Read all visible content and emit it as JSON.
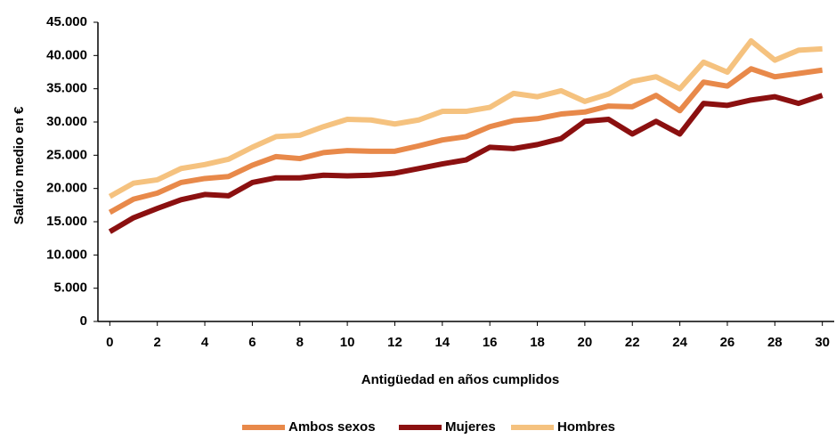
{
  "chart_data": {
    "type": "line",
    "y_label": "Salario medio en €",
    "x_label": "Antigüedad en años cumplidos",
    "x": [
      0,
      1,
      2,
      3,
      4,
      5,
      6,
      7,
      8,
      9,
      10,
      11,
      12,
      13,
      14,
      15,
      16,
      17,
      18,
      19,
      20,
      21,
      22,
      23,
      24,
      25,
      26,
      27,
      28,
      29,
      30
    ],
    "series": [
      {
        "name": "Ambos sexos",
        "color": "#e8894a",
        "values": [
          16400,
          18400,
          19300,
          20900,
          21500,
          21800,
          23500,
          24800,
          24500,
          25400,
          25700,
          25600,
          25600,
          26400,
          27300,
          27800,
          29300,
          30200,
          30500,
          31200,
          31500,
          32400,
          32300,
          34000,
          31700,
          36000,
          35400,
          38000,
          36800,
          37300,
          37800
        ]
      },
      {
        "name": "Mujeres",
        "color": "#8b1010",
        "values": [
          13500,
          15600,
          17000,
          18300,
          19100,
          18900,
          20900,
          21600,
          21600,
          22000,
          21900,
          22000,
          22300,
          23000,
          23700,
          24300,
          26200,
          26000,
          26600,
          27500,
          30100,
          30400,
          28200,
          30100,
          28200,
          32800,
          32500,
          33300,
          33800,
          32800,
          34000
        ]
      },
      {
        "name": "Hombres",
        "color": "#f5c27f",
        "values": [
          18800,
          20800,
          21300,
          23000,
          23600,
          24400,
          26200,
          27800,
          28000,
          29300,
          30400,
          30300,
          29700,
          30300,
          31600,
          31600,
          32200,
          34300,
          33800,
          34700,
          33100,
          34200,
          36100,
          36800,
          35000,
          39000,
          37500,
          42200,
          39300,
          40800,
          41000
        ]
      }
    ],
    "xlim": [
      -0.5,
      30.5
    ],
    "xticks": [
      0,
      2,
      4,
      6,
      8,
      10,
      12,
      14,
      16,
      18,
      20,
      22,
      24,
      26,
      28,
      30
    ],
    "ylim": [
      0,
      45000
    ],
    "yticks": [
      0,
      {
        "value": 5000,
        "label": "5.000"
      },
      {
        "value": 10000,
        "label": "10.000"
      },
      {
        "value": 15000,
        "label": "15.000"
      },
      {
        "value": 20000,
        "label": "20.000"
      },
      {
        "value": 25000,
        "label": "25.000"
      },
      {
        "value": 30000,
        "label": "30.000"
      },
      {
        "value": 35000,
        "label": "35.000"
      },
      {
        "value": 40000,
        "label": "40.000"
      },
      {
        "value": 45000,
        "label": "45.000"
      }
    ],
    "legend": "bottom"
  }
}
